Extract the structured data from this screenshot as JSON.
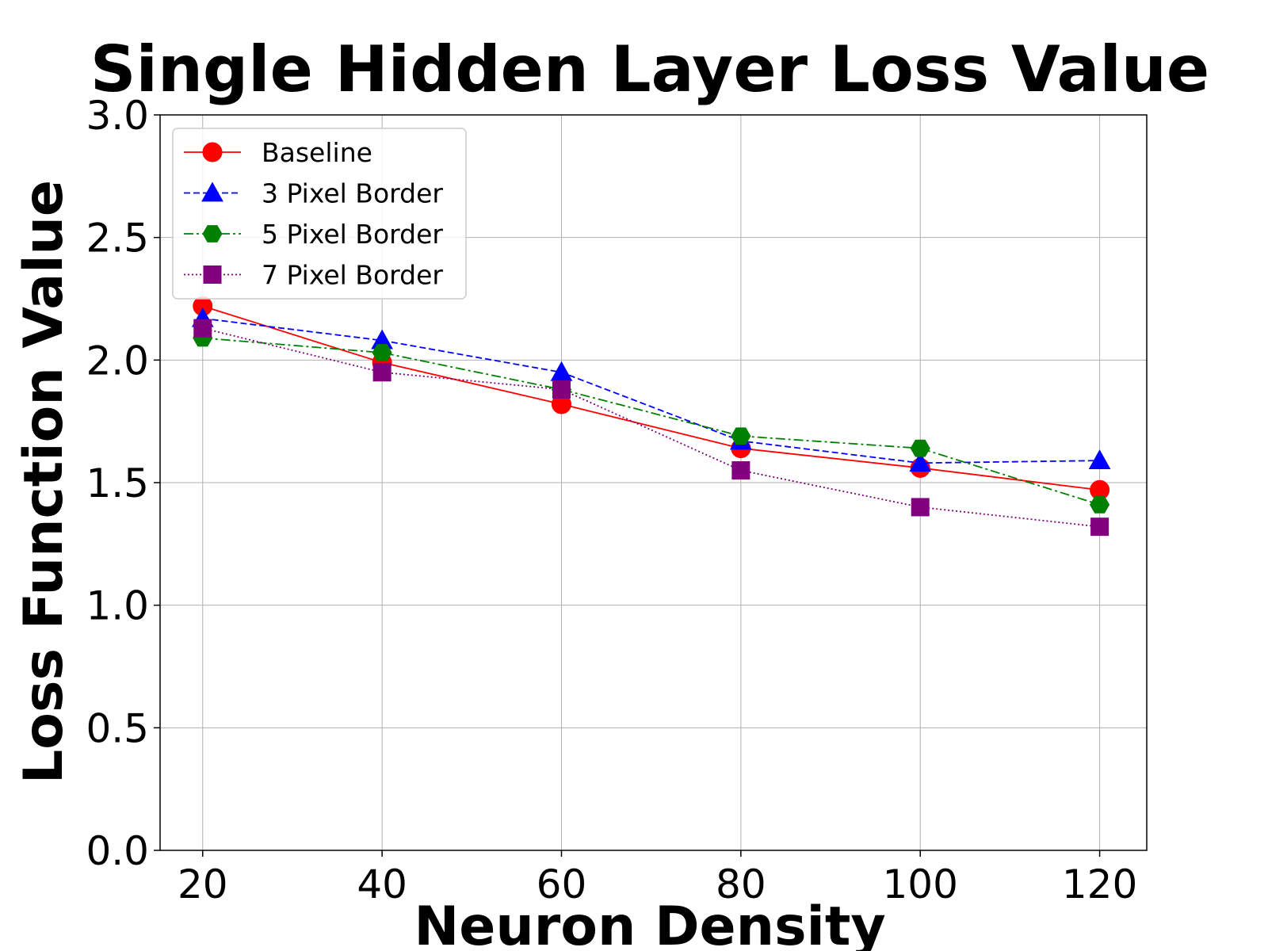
{
  "chart_data": {
    "type": "line",
    "title": "Single Hidden Layer Loss Value",
    "xlabel": "Neuron Density",
    "ylabel": "Loss Function Value",
    "x": [
      20,
      40,
      60,
      80,
      100,
      120
    ],
    "xlim": [
      15.25,
      125.25
    ],
    "ylim": [
      0,
      3
    ],
    "xticks": [
      "20",
      "40",
      "60",
      "80",
      "100",
      "120"
    ],
    "yticks": [
      "0.0",
      "0.5",
      "1.0",
      "1.5",
      "2.0",
      "2.5",
      "3.0"
    ],
    "grid": true,
    "legend_position": "top-left",
    "series": [
      {
        "name": "Baseline",
        "values": [
          2.22,
          1.99,
          1.82,
          1.64,
          1.56,
          1.47
        ],
        "color": "#ff0000",
        "dash": "solid",
        "marker": "circle"
      },
      {
        "name": "3 Pixel Border",
        "values": [
          2.17,
          2.08,
          1.95,
          1.67,
          1.58,
          1.59
        ],
        "color": "#0000ff",
        "dash": "dashed",
        "marker": "triangle"
      },
      {
        "name": "5 Pixel Border",
        "values": [
          2.09,
          2.03,
          1.88,
          1.69,
          1.64,
          1.41
        ],
        "color": "#008000",
        "dash": "dashdot",
        "marker": "hexagon"
      },
      {
        "name": "7 Pixel Border",
        "values": [
          2.13,
          1.95,
          1.88,
          1.55,
          1.4,
          1.32
        ],
        "color": "#800080",
        "dash": "dotted",
        "marker": "square"
      }
    ]
  }
}
